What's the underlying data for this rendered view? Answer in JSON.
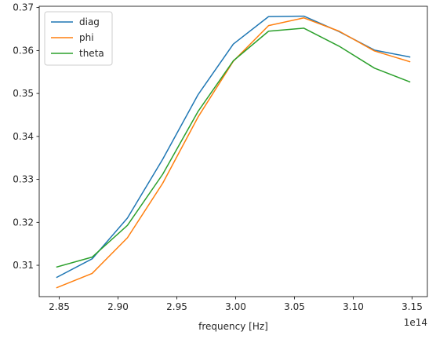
{
  "chart_data": {
    "type": "line",
    "title": "",
    "xlabel": "frequency [Hz]",
    "ylabel": "",
    "x_offset_label": "1e14",
    "x": [
      2.848,
      2.878,
      2.908,
      2.938,
      2.968,
      2.998,
      3.028,
      3.058,
      3.088,
      3.118,
      3.148
    ],
    "xlim": [
      2.833,
      3.163
    ],
    "ylim": [
      0.3027,
      0.3703
    ],
    "xticks": [
      2.85,
      2.9,
      2.95,
      3.0,
      3.05,
      3.1,
      3.15
    ],
    "xtick_labels": [
      "2.85",
      "2.90",
      "2.95",
      "3.00",
      "3.05",
      "3.10",
      "3.15"
    ],
    "yticks": [
      0.31,
      0.32,
      0.33,
      0.34,
      0.35,
      0.36,
      0.37
    ],
    "ytick_labels": [
      "0.31",
      "0.32",
      "0.33",
      "0.34",
      "0.35",
      "0.36",
      "0.37"
    ],
    "grid": false,
    "legend_position": "top-left",
    "series": [
      {
        "name": "diag",
        "color": "#1f77b4",
        "values": [
          0.3072,
          0.3115,
          0.321,
          0.3347,
          0.3497,
          0.3615,
          0.3679,
          0.368,
          0.3644,
          0.3601,
          0.3585
        ]
      },
      {
        "name": "phi",
        "color": "#ff7f0e",
        "values": [
          0.3048,
          0.3081,
          0.3164,
          0.3291,
          0.3445,
          0.3575,
          0.3658,
          0.3676,
          0.3645,
          0.3599,
          0.3574
        ]
      },
      {
        "name": "theta",
        "color": "#2ca02c",
        "values": [
          0.3096,
          0.3119,
          0.3193,
          0.3312,
          0.3458,
          0.3576,
          0.3645,
          0.3652,
          0.361,
          0.3559,
          0.3527
        ]
      }
    ]
  }
}
